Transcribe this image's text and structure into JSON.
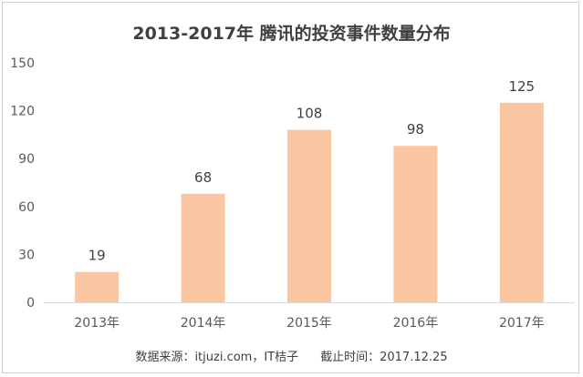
{
  "chart_data": {
    "type": "bar",
    "title": "2013-2017年 腾讯的投资事件数量分布",
    "categories": [
      "2013年",
      "2014年",
      "2015年",
      "2016年",
      "2017年"
    ],
    "values": [
      19,
      68,
      108,
      98,
      125
    ],
    "ylim": [
      0,
      150
    ],
    "yticks": [
      0,
      30,
      60,
      90,
      120,
      150
    ],
    "grid": false,
    "data_labels": true,
    "bar_color": "#F9C6A1"
  },
  "footer": {
    "source": "数据来源：itjuzi.com，IT桔子",
    "cutoff": "截止时间：2017.12.25"
  }
}
